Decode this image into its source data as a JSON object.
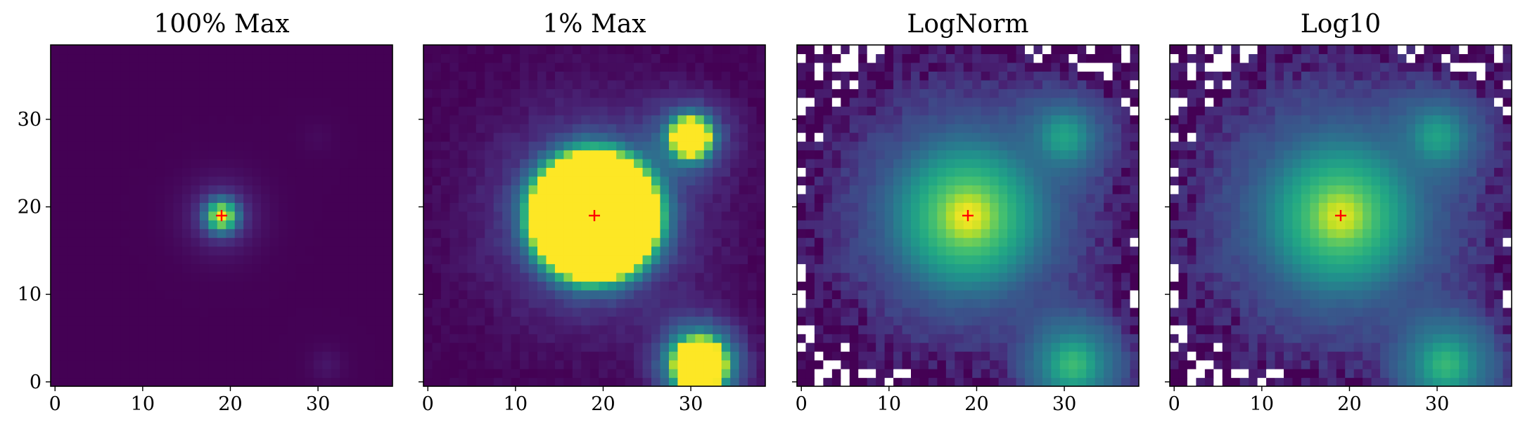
{
  "chart_data": [
    {
      "type": "heatmap",
      "title": "100% Max",
      "norm": "linear",
      "clip_percent_of_max": 100,
      "xlim": [
        -0.5,
        38.5
      ],
      "ylim": [
        -0.5,
        38.5
      ],
      "xticks": [
        0,
        10,
        20,
        30
      ],
      "yticks": [
        0,
        10,
        20,
        30
      ],
      "show_ytick_labels": true,
      "colormap": "viridis",
      "marker": {
        "symbol": "+",
        "color": "#ff0000",
        "x": 19,
        "y": 19
      }
    },
    {
      "type": "heatmap",
      "title": "1% Max",
      "norm": "linear",
      "clip_percent_of_max": 1,
      "xlim": [
        -0.5,
        38.5
      ],
      "ylim": [
        -0.5,
        38.5
      ],
      "xticks": [
        0,
        10,
        20,
        30
      ],
      "yticks": [
        0,
        10,
        20,
        30
      ],
      "show_ytick_labels": false,
      "colormap": "viridis",
      "marker": {
        "symbol": "+",
        "color": "#ff0000",
        "x": 19,
        "y": 19
      }
    },
    {
      "type": "heatmap",
      "title": "LogNorm",
      "norm": "log",
      "xlim": [
        -0.5,
        38.5
      ],
      "ylim": [
        -0.5,
        38.5
      ],
      "xticks": [
        0,
        10,
        20,
        30
      ],
      "yticks": [
        0,
        10,
        20,
        30
      ],
      "show_ytick_labels": false,
      "colormap": "viridis",
      "masked_pixels_color": "#ffffff",
      "marker": {
        "symbol": "+",
        "color": "#ff0000",
        "x": 19,
        "y": 19
      }
    },
    {
      "type": "heatmap",
      "title": "Log10",
      "norm": "log10",
      "xlim": [
        -0.5,
        38.5
      ],
      "ylim": [
        -0.5,
        38.5
      ],
      "xticks": [
        0,
        10,
        20,
        30
      ],
      "yticks": [
        0,
        10,
        20,
        30
      ],
      "show_ytick_labels": false,
      "colormap": "viridis",
      "masked_pixels_color": "#ffffff",
      "marker": {
        "symbol": "+",
        "color": "#ff0000",
        "x": 19,
        "y": 19
      }
    }
  ],
  "sources": [
    {
      "x": 19,
      "y": 19,
      "peak": 1.0
    },
    {
      "x": 31,
      "y": 2,
      "peak": 0.06
    },
    {
      "x": 30,
      "y": 28,
      "peak": 0.025
    }
  ],
  "grid_size": 39
}
